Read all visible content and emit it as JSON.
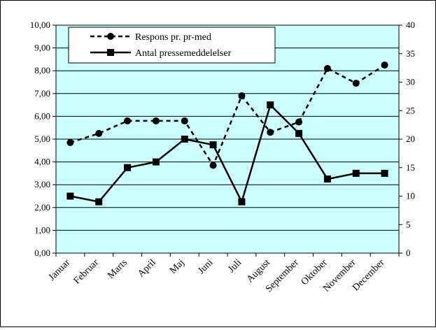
{
  "chart_data": {
    "type": "line",
    "categories": [
      "Januar",
      "Februar",
      "Marts",
      "April",
      "Maj",
      "Juni",
      "Juli",
      "August",
      "September",
      "Oktober",
      "November",
      "December"
    ],
    "series": [
      {
        "name": "Respons pr. pr-med",
        "axis": "left",
        "line_style": "dashed",
        "marker": "circle",
        "values": [
          4.85,
          5.25,
          5.8,
          5.8,
          5.8,
          3.85,
          6.9,
          5.3,
          5.75,
          8.1,
          7.45,
          8.25
        ]
      },
      {
        "name": "Antal pressemeddelelser",
        "axis": "right",
        "line_style": "solid",
        "marker": "square",
        "values": [
          10,
          9,
          15,
          16,
          20,
          19,
          9,
          26,
          21,
          13,
          14,
          14
        ]
      }
    ],
    "y_left": {
      "ylim": [
        0,
        10
      ],
      "ticks": [
        "0,00",
        "1,00",
        "2,00",
        "3,00",
        "4,00",
        "5,00",
        "6,00",
        "7,00",
        "8,00",
        "9,00",
        "10,00"
      ]
    },
    "y_right": {
      "ylim": [
        0,
        40
      ],
      "ticks": [
        "0",
        "5",
        "10",
        "15",
        "20",
        "25",
        "30",
        "35",
        "40"
      ]
    },
    "grid": true,
    "legend_position": "top-left",
    "colors": {
      "plot_background": "#ccffff",
      "lines": "#000000"
    }
  }
}
